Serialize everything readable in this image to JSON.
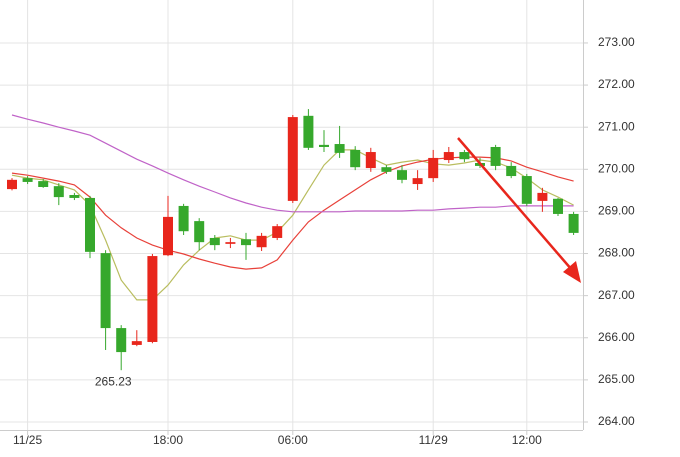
{
  "chart_data": {
    "type": "candlestick",
    "categories": [
      null,
      "11/25",
      null,
      null,
      null,
      null,
      null,
      null,
      null,
      null,
      "18:00",
      null,
      null,
      null,
      null,
      null,
      null,
      null,
      "06:00",
      null,
      null,
      null,
      null,
      null,
      null,
      null,
      null,
      "11/29",
      null,
      null,
      null,
      null,
      null,
      "12:00",
      null,
      null,
      null
    ],
    "open": [
      269.53,
      269.79,
      269.72,
      269.6,
      269.39,
      269.32,
      268.01,
      266.23,
      265.83,
      265.9,
      267.96,
      269.13,
      268.77,
      268.37,
      268.23,
      268.34,
      268.15,
      268.37,
      269.25,
      271.27,
      270.58,
      270.6,
      270.46,
      270.03,
      270.05,
      269.98,
      269.65,
      269.79,
      270.22,
      270.41,
      270.15,
      270.53,
      270.08,
      269.84,
      269.25,
      269.3,
      268.94
    ],
    "high": [
      269.79,
      269.84,
      269.77,
      269.67,
      269.44,
      269.37,
      268.08,
      266.3,
      266.18,
      267.99,
      269.37,
      269.18,
      268.84,
      268.44,
      268.37,
      268.49,
      268.49,
      268.7,
      271.29,
      271.43,
      270.93,
      271.03,
      270.55,
      270.51,
      270.1,
      270.1,
      269.98,
      270.46,
      270.53,
      270.46,
      270.27,
      270.58,
      270.17,
      269.89,
      269.56,
      269.32,
      268.99
    ],
    "low": [
      269.5,
      269.65,
      269.56,
      269.15,
      269.27,
      267.89,
      265.71,
      265.23,
      265.8,
      265.87,
      267.94,
      268.44,
      268.08,
      268.08,
      268.13,
      267.85,
      268.06,
      268.32,
      269.2,
      270.46,
      270.41,
      270.27,
      269.98,
      269.94,
      269.89,
      269.67,
      269.51,
      269.7,
      270.15,
      270.17,
      270.03,
      269.98,
      269.79,
      269.13,
      268.99,
      268.89,
      268.44
    ],
    "close": [
      269.75,
      269.7,
      269.58,
      269.34,
      269.32,
      268.04,
      266.23,
      265.66,
      265.92,
      267.94,
      268.87,
      268.53,
      268.27,
      268.2,
      268.27,
      268.2,
      268.42,
      268.65,
      271.24,
      270.51,
      270.53,
      270.39,
      270.05,
      270.41,
      269.94,
      269.75,
      269.79,
      270.27,
      270.41,
      270.24,
      270.08,
      270.08,
      269.84,
      269.18,
      269.44,
      268.94,
      268.49
    ],
    "up_color": "#e8261c",
    "down_color": "#36a82c",
    "series": [
      {
        "color": "#b9bd5f",
        "values": [
          269.86,
          269.79,
          269.75,
          269.63,
          269.51,
          269.15,
          268.32,
          267.37,
          266.9,
          266.9,
          267.25,
          267.73,
          268.08,
          268.37,
          268.42,
          268.32,
          268.32,
          268.51,
          268.91,
          269.51,
          270.1,
          270.46,
          270.46,
          270.27,
          270.1,
          270.17,
          270.22,
          270.13,
          270.1,
          270.15,
          270.22,
          270.17,
          270.03,
          269.79,
          269.51,
          269.34,
          269.15
        ]
      },
      {
        "color": "#e8413a",
        "values": [
          269.91,
          269.86,
          269.79,
          269.72,
          269.63,
          269.34,
          268.91,
          268.61,
          268.37,
          268.2,
          268.08,
          267.99,
          267.87,
          267.77,
          267.68,
          267.63,
          267.66,
          267.85,
          268.32,
          268.75,
          269.03,
          269.27,
          269.51,
          269.75,
          269.94,
          270.08,
          270.17,
          270.24,
          270.27,
          270.29,
          270.29,
          270.27,
          270.2,
          270.05,
          269.94,
          269.82,
          269.72
        ]
      },
      {
        "color": "#c063c8",
        "values": [
          271.29,
          271.19,
          271.1,
          271.0,
          270.91,
          270.81,
          270.62,
          270.43,
          270.24,
          270.08,
          269.91,
          269.75,
          269.6,
          269.46,
          269.32,
          269.2,
          269.1,
          269.03,
          268.99,
          268.99,
          268.99,
          268.99,
          269.01,
          269.01,
          269.01,
          269.01,
          269.03,
          269.03,
          269.06,
          269.08,
          269.1,
          269.1,
          269.13,
          269.13,
          269.13,
          269.13,
          269.13
        ]
      }
    ],
    "ylim": [
      263.81,
      274.02
    ],
    "yticks": [
      {
        "value": 264,
        "label": "264.00"
      },
      {
        "value": 265,
        "label": "265.00"
      },
      {
        "value": 266,
        "label": "266.00"
      },
      {
        "value": 267,
        "label": "267.00"
      },
      {
        "value": 268,
        "label": "268.00"
      },
      {
        "value": 269,
        "label": "269.00"
      },
      {
        "value": 270,
        "label": "270.00"
      },
      {
        "value": 271,
        "label": "271.00"
      },
      {
        "value": 272,
        "label": "272.00"
      },
      {
        "value": 273,
        "label": "273.00"
      }
    ],
    "grid": true
  }
}
